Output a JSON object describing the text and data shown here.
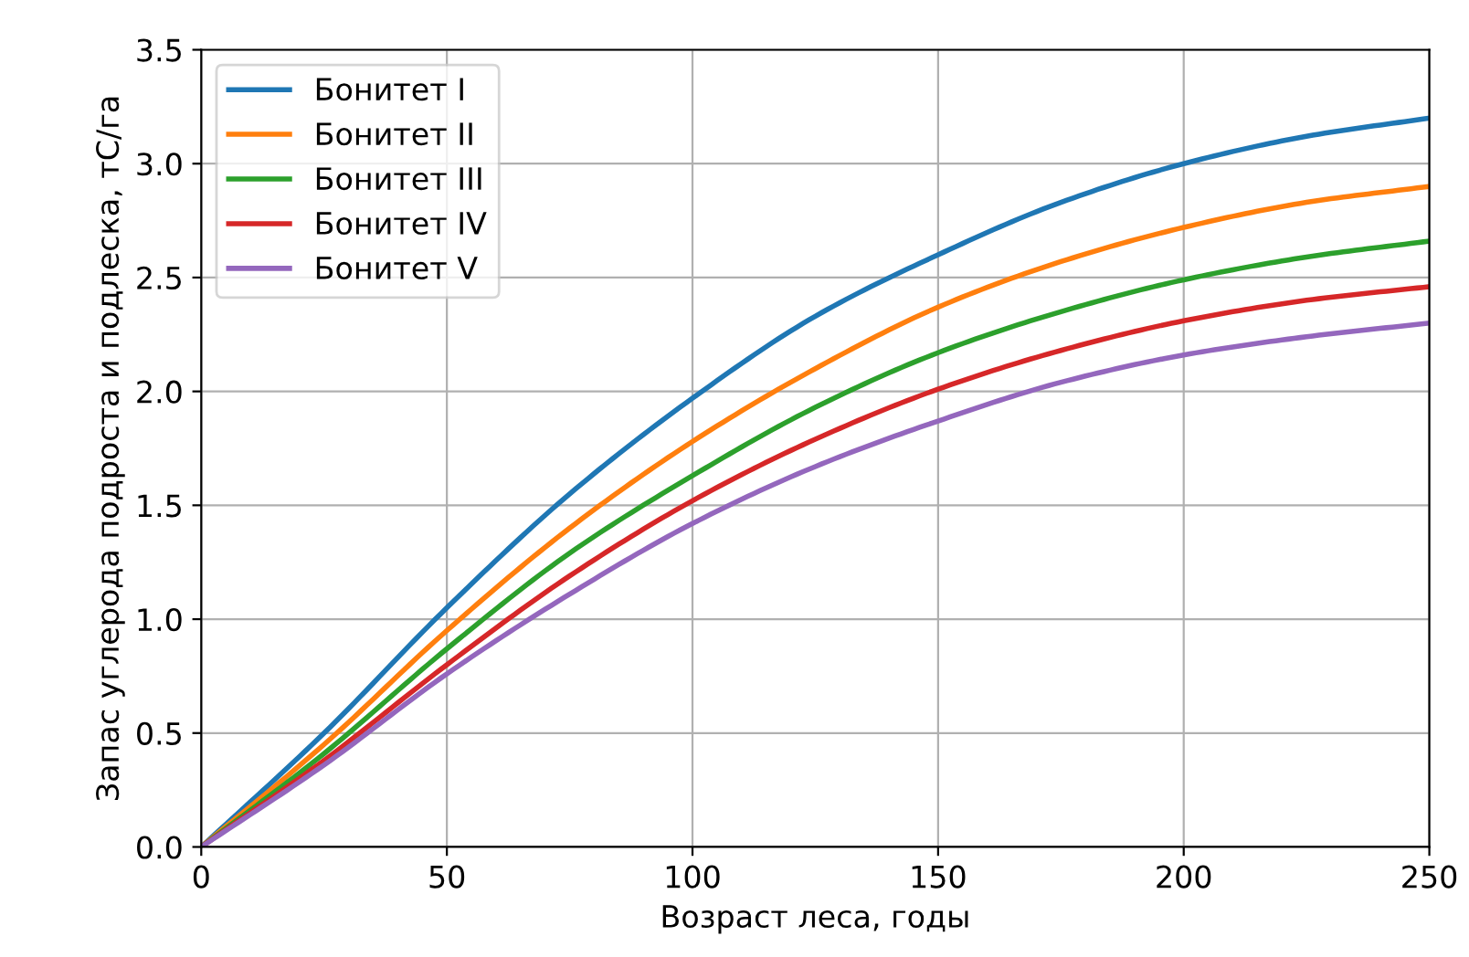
{
  "chart_data": {
    "type": "line",
    "xlabel": "Возраст леса, годы",
    "ylabel": "Запас углерода подроста и подлеска, тC/га",
    "x": [
      0,
      25,
      50,
      75,
      100,
      125,
      150,
      175,
      200,
      225,
      250
    ],
    "series": [
      {
        "name": "Бонитет I",
        "color": "#1f77b4",
        "values": [
          0,
          0.5,
          1.05,
          1.55,
          1.97,
          2.33,
          2.6,
          2.83,
          3.0,
          3.12,
          3.2
        ]
      },
      {
        "name": "Бонитет II",
        "color": "#ff7f0e",
        "values": [
          0,
          0.45,
          0.95,
          1.4,
          1.78,
          2.1,
          2.37,
          2.57,
          2.72,
          2.83,
          2.9
        ]
      },
      {
        "name": "Бонитет III",
        "color": "#2ca02c",
        "values": [
          0,
          0.41,
          0.87,
          1.29,
          1.63,
          1.93,
          2.17,
          2.35,
          2.49,
          2.59,
          2.66
        ]
      },
      {
        "name": "Бонитет IV",
        "color": "#d62728",
        "values": [
          0,
          0.38,
          0.8,
          1.19,
          1.52,
          1.79,
          2.01,
          2.18,
          2.31,
          2.4,
          2.46
        ]
      },
      {
        "name": "Бонитет V",
        "color": "#9467bd",
        "values": [
          0,
          0.36,
          0.76,
          1.11,
          1.42,
          1.67,
          1.87,
          2.04,
          2.16,
          2.24,
          2.3
        ]
      }
    ],
    "xlim": [
      0,
      250
    ],
    "xticks": [
      0,
      50,
      100,
      150,
      200,
      250
    ],
    "ylim": [
      0,
      3.5
    ],
    "yticks": [
      {
        "value": 0,
        "label": "0.0"
      },
      {
        "value": 0.5,
        "label": "0.5"
      },
      {
        "value": 1,
        "label": "1.0"
      },
      {
        "value": 1.5,
        "label": "1.5"
      },
      {
        "value": 2,
        "label": "2.0"
      },
      {
        "value": 2.5,
        "label": "2.5"
      },
      {
        "value": 3,
        "label": "3.0"
      },
      {
        "value": 3.5,
        "label": "3.5"
      }
    ],
    "grid": true,
    "legend": "top left",
    "marker": "none",
    "line_style": "solid"
  }
}
